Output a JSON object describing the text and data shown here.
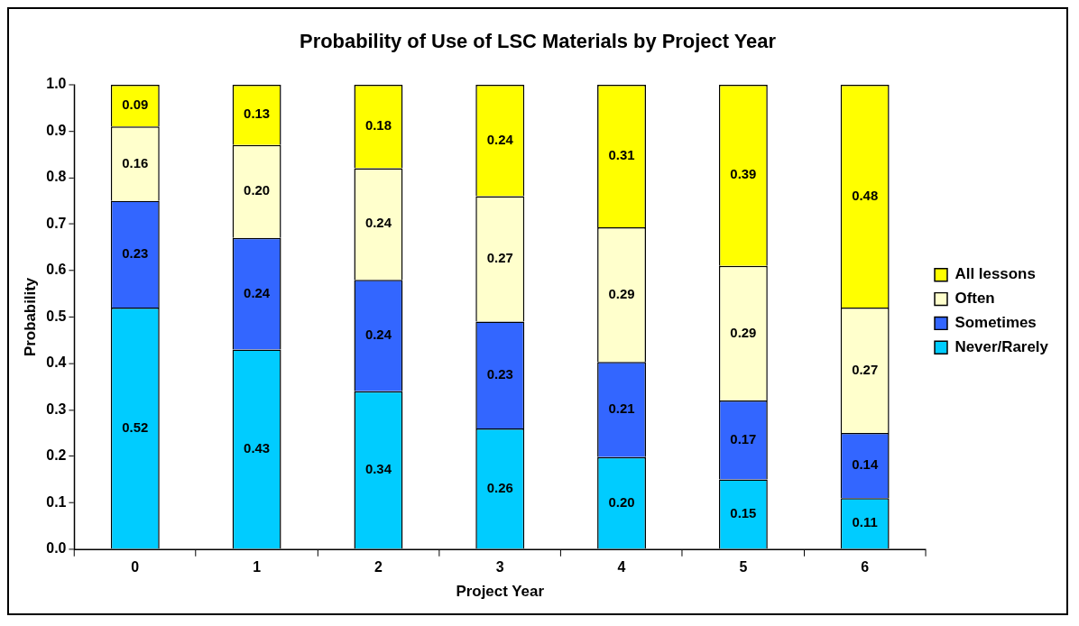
{
  "chart_data": {
    "type": "bar",
    "title": "Probability of Use of LSC Materials by Project Year",
    "xlabel": "Project Year",
    "ylabel": "Probability",
    "categories": [
      "0",
      "1",
      "2",
      "3",
      "4",
      "5",
      "6"
    ],
    "series": [
      {
        "name": "Never/Rarely",
        "color": "#00ccff",
        "values": [
          0.52,
          0.43,
          0.34,
          0.26,
          0.198,
          0.15,
          0.11
        ],
        "value_labels": [
          "0.52",
          "0.43",
          "0.34",
          "0.26",
          "0.20",
          "0.15",
          "0.11"
        ]
      },
      {
        "name": "Sometimes",
        "color": "#3366ff",
        "values": [
          0.23,
          0.24,
          0.24,
          0.23,
          0.205,
          0.17,
          0.14
        ],
        "value_labels": [
          "0.23",
          "0.24",
          "0.24",
          "0.23",
          "0.21",
          "0.17",
          "0.14"
        ]
      },
      {
        "name": "Often",
        "color": "#ffffcc",
        "values": [
          0.16,
          0.2,
          0.24,
          0.27,
          0.29,
          0.29,
          0.27
        ],
        "value_labels": [
          "0.16",
          "0.20",
          "0.24",
          "0.27",
          "0.29",
          "0.29",
          "0.27"
        ]
      },
      {
        "name": "All lessons",
        "color": "#ffff00",
        "values": [
          0.09,
          0.13,
          0.18,
          0.24,
          0.307,
          0.39,
          0.48
        ],
        "value_labels": [
          "0.09",
          "0.13",
          "0.18",
          "0.24",
          "0.31",
          "0.39",
          "0.48"
        ]
      }
    ],
    "stacked": true,
    "ylim": [
      0,
      1
    ],
    "yticks": [
      {
        "value": 0,
        "label": "0.0"
      },
      {
        "value": 0.1,
        "label": "0.1"
      },
      {
        "value": 0.2,
        "label": "0.2"
      },
      {
        "value": 0.3,
        "label": "0.3"
      },
      {
        "value": 0.4,
        "label": "0.4"
      },
      {
        "value": 0.5,
        "label": "0.5"
      },
      {
        "value": 0.6,
        "label": "0.6"
      },
      {
        "value": 0.7,
        "label": "0.7"
      },
      {
        "value": 0.8,
        "label": "0.8"
      },
      {
        "value": 0.9,
        "label": "0.9"
      },
      {
        "value": 1,
        "label": "1.0"
      }
    ],
    "grid": false,
    "legend": "right"
  }
}
